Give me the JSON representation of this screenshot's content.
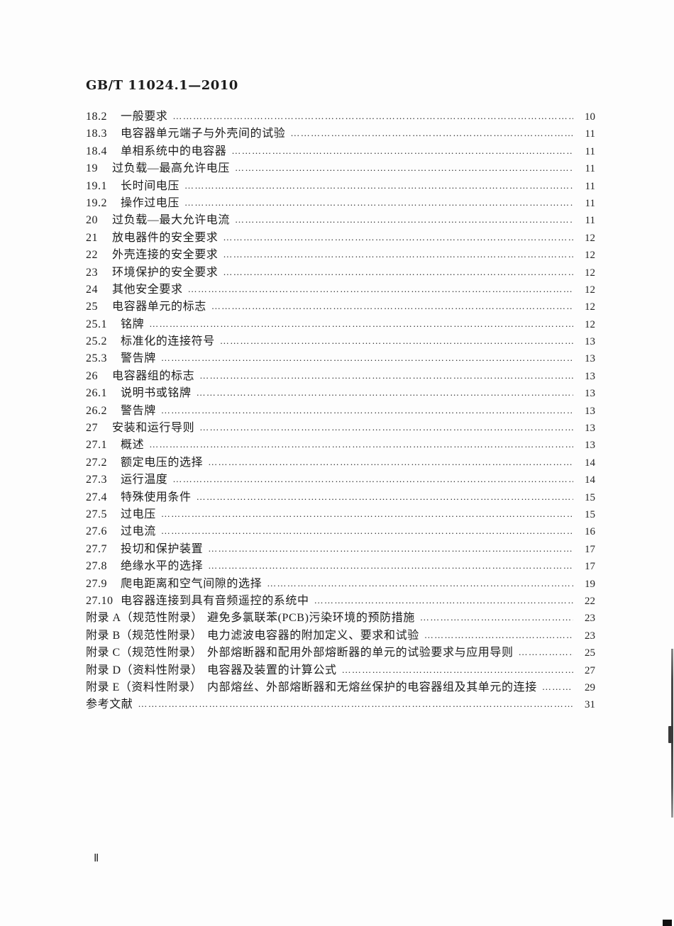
{
  "header": {
    "doc_number": "GB/T 11024.1—2010"
  },
  "toc": {
    "entries": [
      {
        "level": "sub",
        "num": "18.2",
        "title": "一般要求",
        "page": "10"
      },
      {
        "level": "sub",
        "num": "18.3",
        "title": "电容器单元端子与外壳间的试验",
        "page": "11"
      },
      {
        "level": "sub",
        "num": "18.4",
        "title": "单相系统中的电容器",
        "page": "11"
      },
      {
        "level": "main",
        "num": "19",
        "title": "过负载—最高允许电压",
        "page": "11"
      },
      {
        "level": "sub",
        "num": "19.1",
        "title": "长时间电压",
        "page": "11"
      },
      {
        "level": "sub",
        "num": "19.2",
        "title": "操作过电压",
        "page": "11"
      },
      {
        "level": "main",
        "num": "20",
        "title": "过负载—最大允许电流",
        "page": "11"
      },
      {
        "level": "main",
        "num": "21",
        "title": "放电器件的安全要求",
        "page": "12"
      },
      {
        "level": "main",
        "num": "22",
        "title": "外壳连接的安全要求",
        "page": "12"
      },
      {
        "level": "main",
        "num": "23",
        "title": "环境保护的安全要求",
        "page": "12"
      },
      {
        "level": "main",
        "num": "24",
        "title": "其他安全要求",
        "page": "12"
      },
      {
        "level": "main",
        "num": "25",
        "title": "电容器单元的标志",
        "page": "12"
      },
      {
        "level": "sub",
        "num": "25.1",
        "title": "铭牌",
        "page": "12"
      },
      {
        "level": "sub",
        "num": "25.2",
        "title": "标准化的连接符号",
        "page": "13"
      },
      {
        "level": "sub",
        "num": "25.3",
        "title": "警告牌",
        "page": "13"
      },
      {
        "level": "main",
        "num": "26",
        "title": "电容器组的标志",
        "page": "13"
      },
      {
        "level": "sub",
        "num": "26.1",
        "title": "说明书或铭牌",
        "page": "13"
      },
      {
        "level": "sub",
        "num": "26.2",
        "title": "警告牌",
        "page": "13"
      },
      {
        "level": "main",
        "num": "27",
        "title": "安装和运行导则",
        "page": "13"
      },
      {
        "level": "sub",
        "num": "27.1",
        "title": "概述",
        "page": "13"
      },
      {
        "level": "sub",
        "num": "27.2",
        "title": "额定电压的选择",
        "page": "14"
      },
      {
        "level": "sub",
        "num": "27.3",
        "title": "运行温度",
        "page": "14"
      },
      {
        "level": "sub",
        "num": "27.4",
        "title": "特殊使用条件",
        "page": "15"
      },
      {
        "level": "sub",
        "num": "27.5",
        "title": "过电压",
        "page": "15"
      },
      {
        "level": "sub",
        "num": "27.6",
        "title": "过电流",
        "page": "16"
      },
      {
        "level": "sub",
        "num": "27.7",
        "title": "投切和保护装置",
        "page": "17"
      },
      {
        "level": "sub",
        "num": "27.8",
        "title": "绝缘水平的选择",
        "page": "17"
      },
      {
        "level": "sub",
        "num": "27.9",
        "title": "爬电距离和空气间隙的选择",
        "page": "19"
      },
      {
        "level": "sub",
        "num": "27.10",
        "title": "电容器连接到具有音频遥控的系统中",
        "page": "22"
      },
      {
        "level": "appendix",
        "num": "附录 A（规范性附录）",
        "title": "避免多氯联苯(PCB)污染环境的预防措施",
        "page": "23"
      },
      {
        "level": "appendix",
        "num": "附录 B（规范性附录）",
        "title": "电力滤波电容器的附加定义、要求和试验",
        "page": "23"
      },
      {
        "level": "appendix",
        "num": "附录 C（规范性附录）",
        "title": "外部熔断器和配用外部熔断器的单元的试验要求与应用导则",
        "page": "25"
      },
      {
        "level": "appendix",
        "num": "附录 D（资料性附录）",
        "title": "电容器及装置的计算公式",
        "page": "27"
      },
      {
        "level": "appendix",
        "num": "附录 E（资料性附录）",
        "title": "内部熔丝、外部熔断器和无熔丝保护的电容器组及其单元的连接",
        "page": "29"
      },
      {
        "level": "plain",
        "num": "",
        "title": "参考文献",
        "page": "31"
      }
    ]
  },
  "footer": {
    "page_number": "Ⅱ"
  },
  "colors": {
    "background": "#fdfdfd",
    "ink": "#1c1c1c",
    "scan_artifact": "#3a3a3a"
  },
  "leader_dots": "…………………………………………………………………………………………………………………………………………"
}
